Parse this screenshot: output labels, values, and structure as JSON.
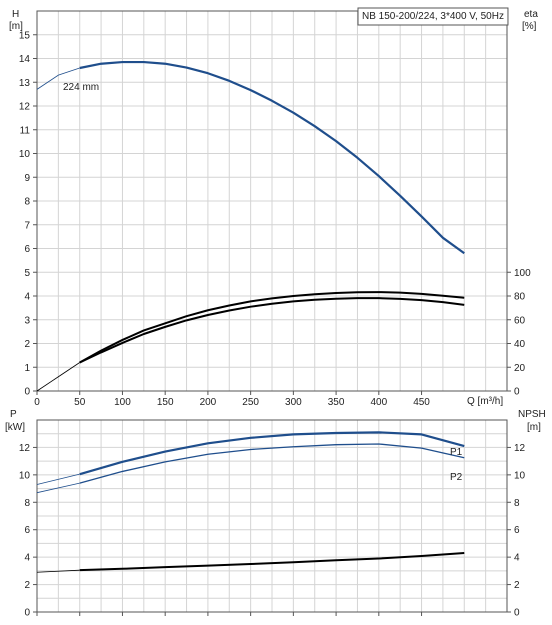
{
  "chart_data": [
    {
      "type": "line",
      "title": "NB 150-200/224, 3*400 V, 50Hz",
      "xlabel": "Q [m³/h]",
      "xlim": [
        0,
        550
      ],
      "xticks": [
        0,
        50,
        100,
        150,
        200,
        250,
        300,
        350,
        400,
        450
      ],
      "left_axis": {
        "label_line1": "H",
        "label_line2": "[m]",
        "ylim": [
          0,
          16
        ],
        "ticks": [
          0,
          1,
          2,
          3,
          4,
          5,
          6,
          7,
          8,
          9,
          10,
          11,
          12,
          13,
          14,
          15
        ]
      },
      "right_axis": {
        "label_line1": "eta",
        "label_line2": "[%]",
        "ylim": [
          0,
          100
        ],
        "ticks": [
          0,
          20,
          40,
          60,
          80,
          100
        ]
      },
      "grid": true,
      "annotation": "224 mm",
      "series": [
        {
          "axis": "left",
          "color": "#1f4e8c",
          "dashed_extension": true,
          "x": [
            0,
            25,
            50,
            75,
            100,
            125,
            150,
            175,
            200,
            225,
            250,
            275,
            300,
            325,
            350,
            375,
            400,
            425,
            450,
            475,
            500
          ],
          "y": [
            12.7,
            13.3,
            13.6,
            13.78,
            13.85,
            13.85,
            13.78,
            13.62,
            13.38,
            13.06,
            12.67,
            12.22,
            11.72,
            11.15,
            10.52,
            9.82,
            9.05,
            8.22,
            7.35,
            6.45,
            5.8
          ]
        },
        {
          "axis": "right",
          "color": "#000000",
          "dashed_extension": true,
          "x": [
            0,
            25,
            50,
            75,
            100,
            125,
            150,
            175,
            200,
            225,
            250,
            275,
            300,
            325,
            350,
            375,
            400,
            425,
            450,
            475,
            500
          ],
          "y": [
            0,
            12,
            24,
            34,
            43,
            51,
            57,
            63,
            68,
            72,
            75.5,
            78,
            80,
            81.5,
            82.5,
            83.2,
            83.3,
            82.8,
            81.8,
            80.2,
            78.5
          ]
        },
        {
          "axis": "right",
          "color": "#000000",
          "dashed_extension": false,
          "x": [
            50,
            75,
            100,
            125,
            150,
            175,
            200,
            225,
            250,
            275,
            300,
            325,
            350,
            375,
            400,
            425,
            450,
            475,
            500
          ],
          "y": [
            24,
            32.5,
            40.5,
            48,
            54,
            59.5,
            64,
            67.8,
            71,
            73.5,
            75.5,
            76.8,
            77.7,
            78.2,
            78.2,
            77.6,
            76.5,
            74.8,
            72.5
          ]
        }
      ]
    },
    {
      "type": "line",
      "xlim": [
        0,
        550
      ],
      "left_axis": {
        "label_line1": "P",
        "label_line2": "[kW]",
        "ylim": [
          0,
          14
        ],
        "ticks": [
          0,
          2,
          4,
          6,
          8,
          10,
          12
        ]
      },
      "right_axis": {
        "label_line1": "NPSH",
        "label_line2": "[m]",
        "ylim": [
          0,
          14
        ],
        "ticks": [
          0,
          2,
          4,
          6,
          8,
          10,
          12
        ]
      },
      "grid": true,
      "series": [
        {
          "name": "P1",
          "axis": "left",
          "color": "#1f4e8c",
          "x": [
            0,
            50,
            100,
            150,
            200,
            250,
            300,
            350,
            400,
            450,
            500
          ],
          "y": [
            9.3,
            10.05,
            10.95,
            11.7,
            12.3,
            12.7,
            12.95,
            13.05,
            13.1,
            12.95,
            12.1
          ]
        },
        {
          "name": "P2",
          "axis": "left",
          "color": "#1f4e8c",
          "x": [
            0,
            50,
            100,
            150,
            200,
            250,
            300,
            350,
            400,
            450,
            500
          ],
          "y": [
            8.7,
            9.4,
            10.25,
            10.95,
            11.5,
            11.85,
            12.05,
            12.2,
            12.25,
            11.95,
            11.25
          ]
        },
        {
          "axis": "right",
          "color": "#000000",
          "x": [
            0,
            50,
            100,
            150,
            200,
            250,
            300,
            350,
            400,
            450,
            500
          ],
          "y": [
            2.9,
            3.05,
            3.15,
            3.27,
            3.38,
            3.5,
            3.63,
            3.77,
            3.9,
            4.08,
            4.3
          ]
        }
      ]
    }
  ]
}
